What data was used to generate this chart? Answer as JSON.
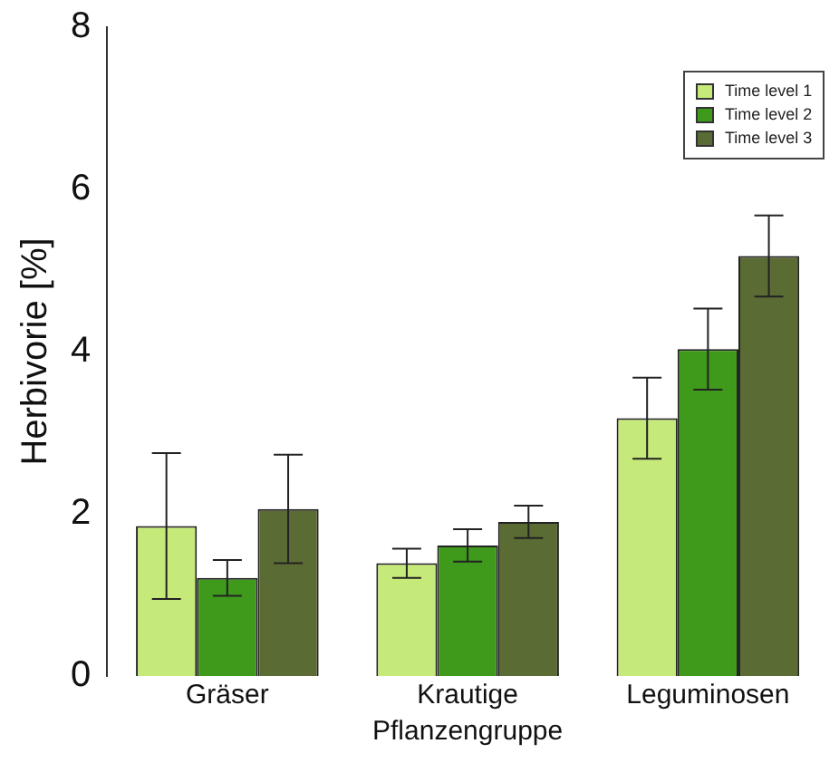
{
  "chart_data": {
    "type": "bar",
    "xlabel": "Pflanzengruppe",
    "ylabel": "Herbivorie [%]",
    "categories": [
      "Gräser",
      "Krautige",
      "Leguminosen"
    ],
    "series": [
      {
        "name": "Time level 1",
        "color": "#c5ea7a",
        "values": [
          1.85,
          1.39,
          3.18
        ],
        "errors": [
          0.9,
          0.18,
          0.5
        ]
      },
      {
        "name": "Time level 2",
        "color": "#3f9a1c",
        "values": [
          1.21,
          1.61,
          4.03
        ],
        "errors": [
          0.22,
          0.2,
          0.5
        ]
      },
      {
        "name": "Time level 3",
        "color": "#5b6b34",
        "values": [
          2.06,
          1.9,
          5.18
        ],
        "errors": [
          0.67,
          0.2,
          0.5
        ]
      }
    ],
    "ylim": [
      0,
      8
    ],
    "yticks": [
      0,
      2,
      4,
      6,
      8
    ],
    "grid": false,
    "legend": "top right"
  }
}
